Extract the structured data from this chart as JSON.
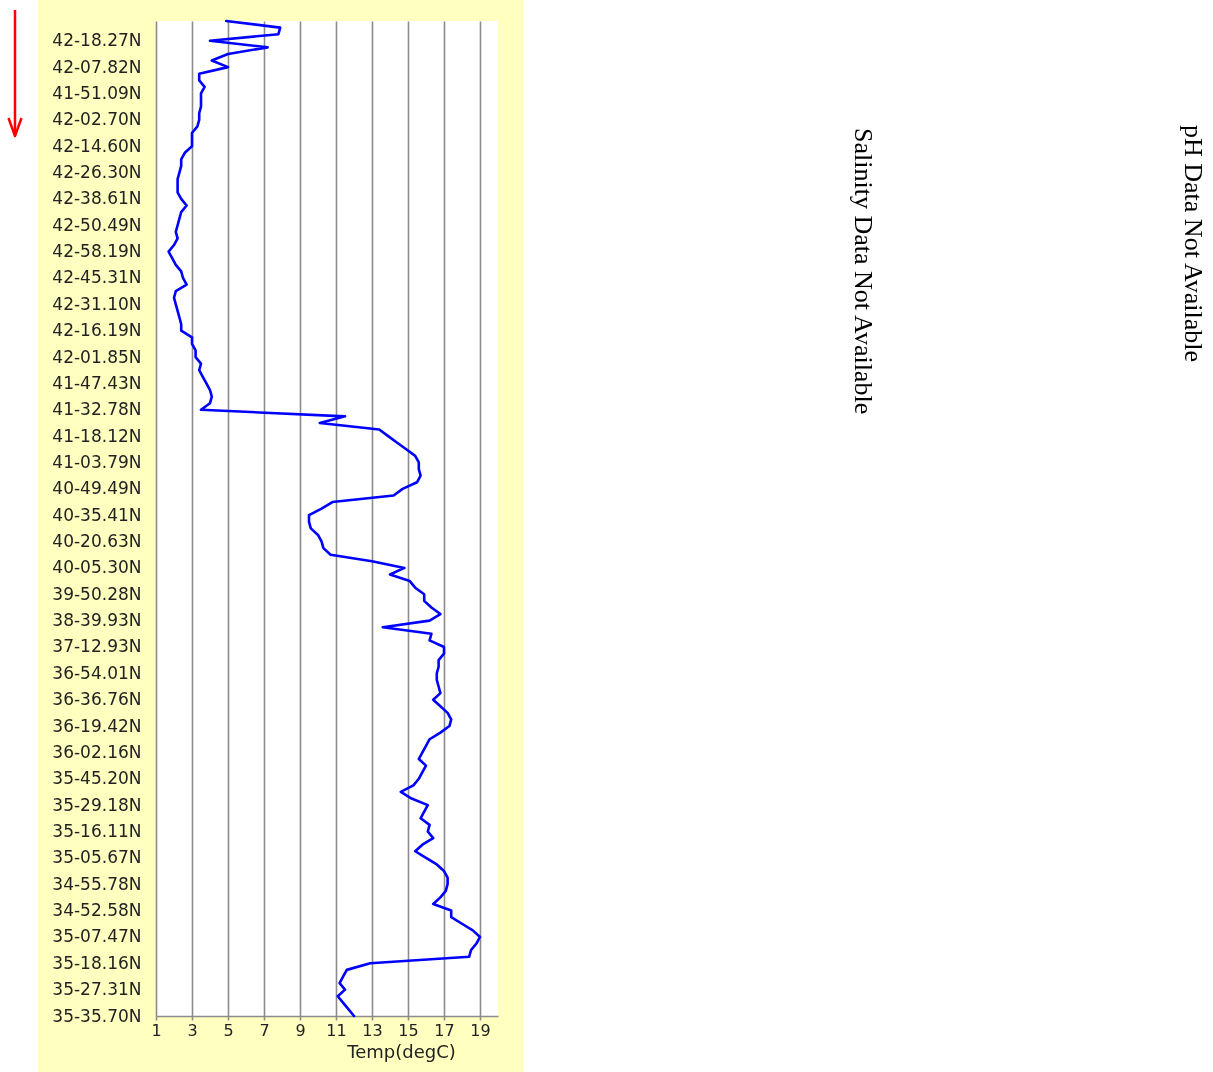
{
  "chart_data": {
    "type": "line",
    "orientation": "horizontal",
    "xlabel": "Temp(degC)",
    "categories": [
      null,
      null,
      null,
      "42-18.27N",
      null,
      null,
      null,
      "42-07.82N",
      null,
      null,
      null,
      "41-51.09N",
      null,
      null,
      null,
      "42-02.70N",
      null,
      null,
      null,
      "42-14.60N",
      null,
      null,
      null,
      "42-26.30N",
      null,
      null,
      null,
      "42-38.61N",
      null,
      null,
      null,
      "42-50.49N",
      null,
      null,
      null,
      "42-58.19N",
      null,
      null,
      null,
      "42-45.31N",
      null,
      null,
      null,
      "42-31.10N",
      null,
      null,
      null,
      "42-16.19N",
      null,
      null,
      null,
      "42-01.85N",
      null,
      null,
      null,
      "41-47.43N",
      null,
      null,
      null,
      "41-32.78N",
      null,
      null,
      null,
      "41-18.12N",
      null,
      null,
      null,
      "41-03.79N",
      null,
      null,
      null,
      "40-49.49N",
      null,
      null,
      null,
      "40-35.41N",
      null,
      null,
      null,
      "40-20.63N",
      null,
      null,
      null,
      "40-05.30N",
      null,
      null,
      null,
      "39-50.28N",
      null,
      null,
      null,
      "38-39.93N",
      null,
      null,
      null,
      "37-12.93N",
      null,
      null,
      null,
      "36-54.01N",
      null,
      null,
      null,
      "36-36.76N",
      null,
      null,
      null,
      "36-19.42N",
      null,
      null,
      null,
      "36-02.16N",
      null,
      null,
      null,
      "35-45.20N",
      null,
      null,
      null,
      "35-29.18N",
      null,
      null,
      null,
      "35-16.11N",
      null,
      null,
      null,
      "35-05.67N",
      null,
      null,
      null,
      "34-55.78N",
      null,
      null,
      null,
      "34-52.58N",
      null,
      null,
      null,
      "35-07.47N",
      null,
      null,
      null,
      "35-18.16N",
      null,
      null,
      null,
      "35-27.31N",
      null,
      null,
      null,
      "35-35.70N"
    ],
    "series": [
      {
        "color": "#0000ff",
        "values": [
          4.9,
          7.9,
          7.8,
          4.0,
          7.2,
          5.0,
          4.1,
          5.0,
          3.4,
          3.4,
          3.7,
          3.5,
          3.5,
          3.5,
          3.4,
          3.4,
          3.3,
          3.0,
          3.0,
          3.0,
          2.6,
          2.4,
          2.4,
          2.3,
          2.2,
          2.2,
          2.2,
          2.4,
          2.7,
          2.4,
          2.3,
          2.2,
          2.1,
          2.2,
          2.0,
          1.7,
          1.9,
          2.1,
          2.4,
          2.5,
          2.7,
          2.1,
          2.0,
          2.1,
          2.2,
          2.3,
          2.4,
          2.4,
          3.0,
          3.0,
          3.2,
          3.2,
          3.5,
          3.4,
          3.6,
          3.8,
          4.0,
          4.1,
          4.0,
          3.5,
          11.5,
          10.1,
          13.4,
          13.9,
          14.4,
          14.9,
          15.4,
          15.6,
          15.6,
          15.7,
          15.5,
          14.7,
          14.2,
          10.8,
          10.2,
          9.5,
          9.5,
          9.6,
          10.0,
          10.2,
          10.3,
          10.7,
          13.0,
          14.8,
          14.0,
          15.1,
          15.4,
          15.9,
          15.9,
          16.3,
          16.8,
          16.2,
          13.6,
          16.3,
          16.2,
          17.0,
          17.0,
          16.7,
          16.7,
          16.6,
          16.6,
          16.7,
          16.8,
          16.4,
          16.8,
          17.2,
          17.4,
          17.3,
          16.8,
          16.2,
          16.0,
          15.8,
          15.6,
          16.0,
          15.8,
          15.6,
          15.3,
          14.6,
          15.2,
          16.1,
          15.9,
          15.7,
          16.2,
          16.1,
          16.4,
          15.8,
          15.4,
          16.0,
          16.6,
          17.0,
          17.2,
          17.2,
          17.1,
          16.8,
          16.4,
          17.4,
          17.4,
          18.0,
          18.6,
          19.0,
          18.8,
          18.5,
          18.4,
          12.9,
          11.6,
          11.4,
          11.2,
          11.5,
          11.1,
          11.4,
          11.7,
          12.0
        ]
      }
    ],
    "xlim": [
      1,
      20
    ],
    "xticks": [
      1,
      3,
      5,
      7,
      9,
      11,
      13,
      15,
      17,
      19
    ],
    "grid": "x",
    "annotations": [
      "Salinity Data Not Available",
      "pH Data Not Available"
    ]
  }
}
